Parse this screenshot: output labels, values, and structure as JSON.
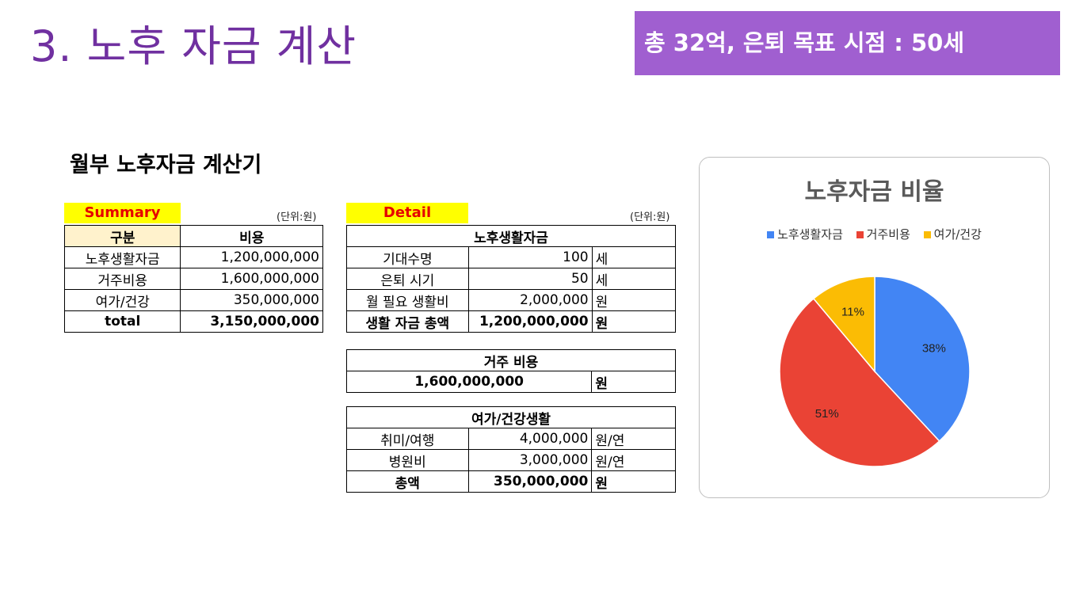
{
  "slide": {
    "title": "3. 노후 자금 계산",
    "goal_badge": "총 32억, 은퇴 목표 시점  : 50세",
    "sheet_title": "월부 노후자금 계산기"
  },
  "summary": {
    "label": "Summary",
    "unit": "(단위:원)",
    "headers": [
      "구분",
      "비용"
    ],
    "rows": [
      {
        "name": "노후생활자금",
        "value": "1,200,000,000"
      },
      {
        "name": "거주비용",
        "value": "1,600,000,000"
      },
      {
        "name": "여가/건강",
        "value": "350,000,000"
      }
    ],
    "total_label": "total",
    "total_value": "3,150,000,000"
  },
  "detail": {
    "label": "Detail",
    "unit": "(단위:원)",
    "living": {
      "title": "노후생활자금",
      "rows": [
        {
          "name": "기대수명",
          "value": "100",
          "unit": "세"
        },
        {
          "name": "은퇴 시기",
          "value": "50",
          "unit": "세"
        },
        {
          "name": "월 필요 생활비",
          "value": "2,000,000",
          "unit": "원"
        }
      ],
      "total": {
        "name": "생활 자금 총액",
        "value": "1,200,000,000",
        "unit": "원"
      }
    },
    "housing": {
      "title": "거주 비용",
      "value": "1,600,000,000",
      "unit": "원"
    },
    "leisure": {
      "title": "여가/건강생활",
      "rows": [
        {
          "name": "취미/여행",
          "value": "4,000,000",
          "unit": "원/연"
        },
        {
          "name": "병원비",
          "value": "3,000,000",
          "unit": "원/연"
        }
      ],
      "total": {
        "name": "총액",
        "value": "350,000,000",
        "unit": "원"
      }
    }
  },
  "chart_data": {
    "type": "pie",
    "title": "노후자금 비율",
    "legend_position": "top",
    "categories": [
      "노후생활자금",
      "거주비용",
      "여가/건강"
    ],
    "values": [
      1200000000,
      1600000000,
      350000000
    ],
    "labels": [
      "38%",
      "51%",
      "11%"
    ],
    "colors": [
      "#4285F4",
      "#EA4335",
      "#FBBC04"
    ]
  }
}
